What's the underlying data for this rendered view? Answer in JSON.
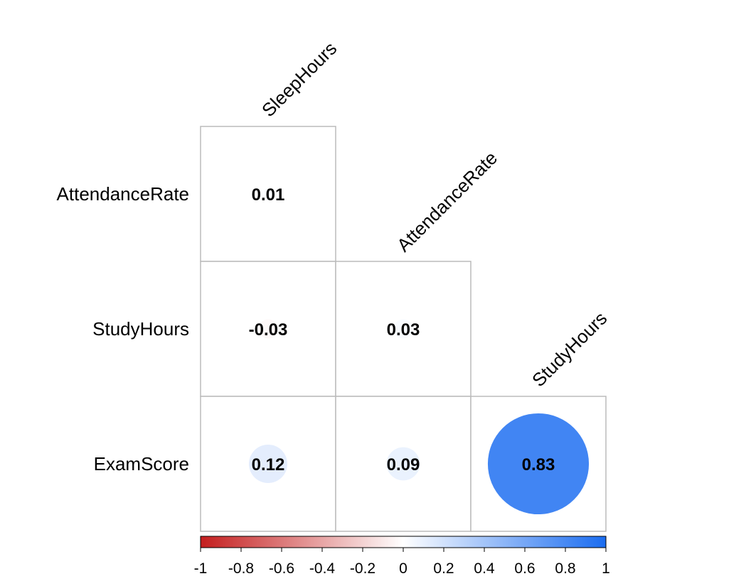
{
  "chart_data": {
    "type": "heatmap",
    "style": "lower-triangle correlation matrix with circle markers",
    "row_labels": [
      "AttendanceRate",
      "StudyHours",
      "ExamScore"
    ],
    "col_labels": [
      "SleepHours",
      "AttendanceRate",
      "StudyHours"
    ],
    "cells": [
      {
        "row": 0,
        "col": 0,
        "value": 0.01,
        "label": "0.01"
      },
      {
        "row": 1,
        "col": 0,
        "value": -0.03,
        "label": "-0.03"
      },
      {
        "row": 1,
        "col": 1,
        "value": 0.03,
        "label": "0.03"
      },
      {
        "row": 2,
        "col": 0,
        "value": 0.12,
        "label": "0.12"
      },
      {
        "row": 2,
        "col": 1,
        "value": 0.09,
        "label": "0.09"
      },
      {
        "row": 2,
        "col": 2,
        "value": 0.83,
        "label": "0.83"
      }
    ],
    "colorbar": {
      "range": [
        -1,
        1
      ],
      "ticks": [
        -1,
        -0.8,
        -0.6,
        -0.4,
        -0.2,
        0,
        0.2,
        0.4,
        0.6,
        0.8,
        1
      ],
      "tick_labels": [
        "-1",
        "-0.8",
        "-0.6",
        "-0.4",
        "-0.2",
        "0",
        "0.2",
        "0.4",
        "0.6",
        "0.8",
        "1"
      ],
      "colors": {
        "negative": "#c41e1e",
        "zero": "#ffffff",
        "positive": "#1a6cf0"
      },
      "placement": "bottom"
    },
    "grid_color": "#bbbbbb"
  }
}
